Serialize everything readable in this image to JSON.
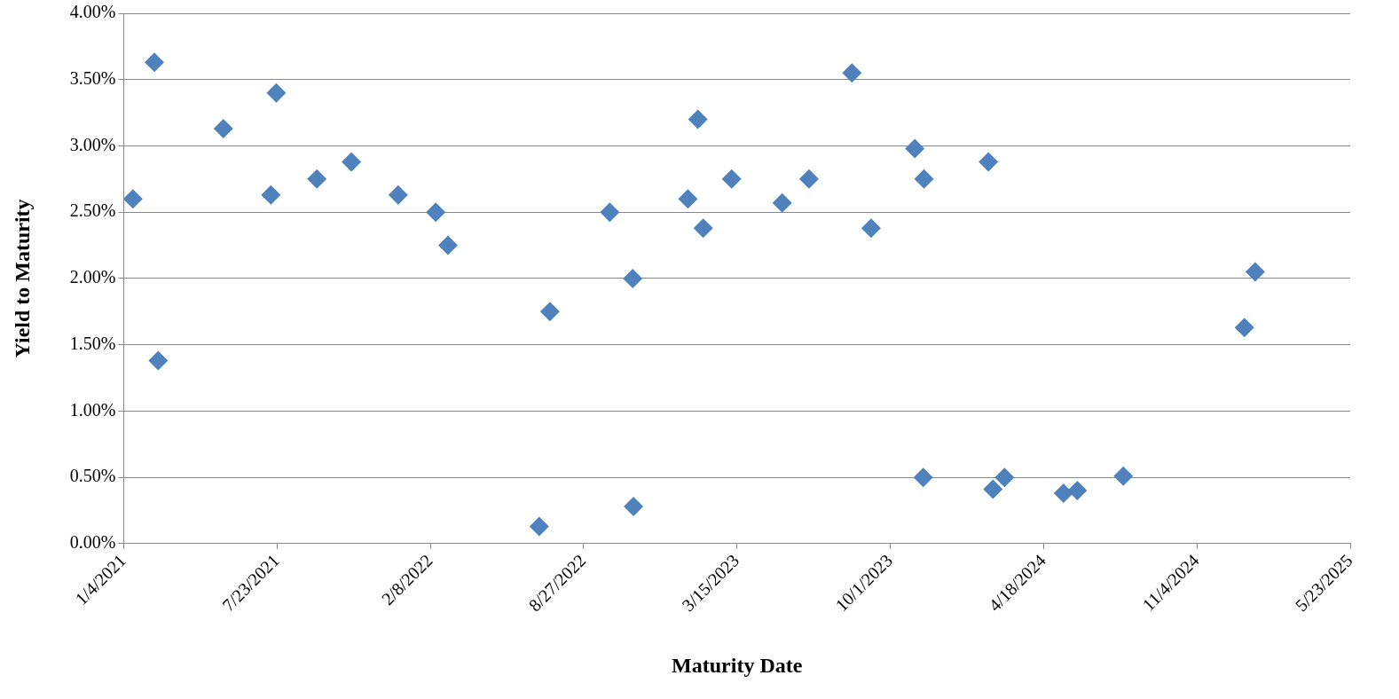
{
  "chart_data": {
    "type": "scatter",
    "xlabel": "Maturity Date",
    "ylabel": "Yield to Maturity",
    "marker": "diamond",
    "grid": "y",
    "legend": false,
    "x": [
      "2021-01-16",
      "2021-02-13",
      "2021-02-18",
      "2021-05-14",
      "2021-07-15",
      "2021-07-22",
      "2021-09-13",
      "2021-10-28",
      "2021-12-28",
      "2022-02-15",
      "2022-03-03",
      "2022-06-30",
      "2022-07-14",
      "2022-09-30",
      "2022-10-30",
      "2022-10-31",
      "2023-01-10",
      "2023-01-23",
      "2023-01-30",
      "2023-03-08",
      "2023-05-13",
      "2023-06-17",
      "2023-08-12",
      "2023-09-06",
      "2023-11-02",
      "2023-11-14",
      "2023-11-13",
      "2024-02-06",
      "2024-02-12",
      "2024-02-27",
      "2024-05-14",
      "2024-06-01",
      "2024-07-31",
      "2025-01-05",
      "2025-01-19"
    ],
    "series": [
      {
        "color": "#4f81bd",
        "values": [
          2.6,
          3.63,
          1.38,
          3.13,
          2.63,
          3.4,
          2.75,
          2.88,
          2.63,
          2.5,
          2.25,
          0.13,
          1.75,
          2.5,
          2.0,
          0.28,
          2.6,
          3.2,
          2.38,
          2.75,
          2.57,
          2.75,
          3.55,
          2.38,
          2.98,
          2.75,
          0.5,
          2.88,
          0.41,
          0.5,
          0.38,
          0.4,
          0.51,
          1.63,
          2.05
        ]
      }
    ],
    "xlim": [
      "2021-01-04",
      "2025-05-23"
    ],
    "xticks": [
      {
        "value": "2021-01-04",
        "label": "1/4/2021"
      },
      {
        "value": "2021-07-23",
        "label": "7/23/2021"
      },
      {
        "value": "2022-02-08",
        "label": "2/8/2022"
      },
      {
        "value": "2022-08-27",
        "label": "8/27/2022"
      },
      {
        "value": "2023-03-15",
        "label": "3/15/2023"
      },
      {
        "value": "2023-10-01",
        "label": "10/1/2023"
      },
      {
        "value": "2024-04-18",
        "label": "4/18/2024"
      },
      {
        "value": "2024-11-04",
        "label": "11/4/2024"
      },
      {
        "value": "2025-05-23",
        "label": "5/23/2025"
      }
    ],
    "ylim": [
      0,
      4
    ],
    "yticks": [
      {
        "value": 0,
        "label": "0.00%"
      },
      {
        "value": 0.5,
        "label": "0.50%"
      },
      {
        "value": 1,
        "label": "1.00%"
      },
      {
        "value": 1.5,
        "label": "1.50%"
      },
      {
        "value": 2,
        "label": "2.00%"
      },
      {
        "value": 2.5,
        "label": "2.50%"
      },
      {
        "value": 3,
        "label": "3.00%"
      },
      {
        "value": 3.5,
        "label": "3.50%"
      },
      {
        "value": 4,
        "label": "4.00%"
      }
    ]
  }
}
